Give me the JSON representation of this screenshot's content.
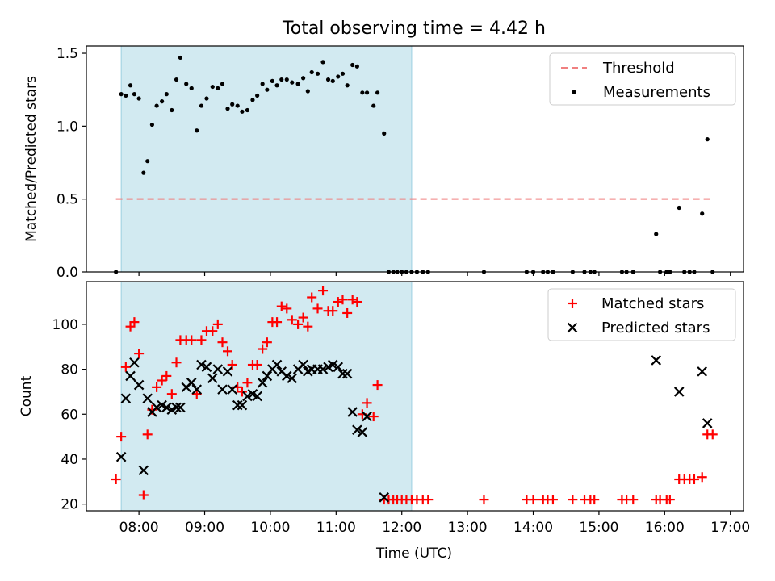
{
  "chart_data": {
    "title": "Total observing time = 4.42 h",
    "xlabel": "Time (UTC)",
    "x_unit": "hours UTC",
    "xlim": [
      7.2,
      17.2
    ],
    "xticks": [
      8,
      9,
      10,
      11,
      12,
      13,
      14,
      15,
      16,
      17
    ],
    "xtick_labels": [
      "08:00",
      "09:00",
      "10:00",
      "11:00",
      "12:00",
      "13:00",
      "14:00",
      "15:00",
      "16:00",
      "17:00"
    ],
    "shaded_span": {
      "x0": 7.73,
      "x1": 12.15,
      "color": "#add8e6"
    },
    "panels": [
      {
        "type": "scatter",
        "ylabel": "Matched/Predicted stars",
        "ylim": [
          0,
          1.55
        ],
        "yticks": [
          0.0,
          0.5,
          1.0,
          1.5
        ],
        "ytick_labels": [
          "0.0",
          "0.5",
          "1.0",
          "1.5"
        ],
        "legend": {
          "position": "top-right",
          "entries": [
            "Threshold",
            "Measurements"
          ]
        },
        "threshold": {
          "name": "Threshold",
          "y": 0.5,
          "x0": 7.65,
          "x1": 16.75,
          "color": "#f08080",
          "style": "dashed"
        },
        "series": [
          {
            "name": "Measurements",
            "marker": "dot",
            "color": "#000000",
            "points": [
              [
                7.65,
                0.0
              ],
              [
                7.73,
                1.22
              ],
              [
                7.8,
                1.21
              ],
              [
                7.87,
                1.28
              ],
              [
                7.93,
                1.22
              ],
              [
                8.0,
                1.19
              ],
              [
                8.07,
                0.68
              ],
              [
                8.13,
                0.76
              ],
              [
                8.2,
                1.01
              ],
              [
                8.27,
                1.14
              ],
              [
                8.35,
                1.17
              ],
              [
                8.42,
                1.22
              ],
              [
                8.5,
                1.11
              ],
              [
                8.57,
                1.32
              ],
              [
                8.63,
                1.47
              ],
              [
                8.72,
                1.29
              ],
              [
                8.8,
                1.26
              ],
              [
                8.88,
                0.97
              ],
              [
                8.95,
                1.14
              ],
              [
                9.03,
                1.19
              ],
              [
                9.12,
                1.27
              ],
              [
                9.2,
                1.26
              ],
              [
                9.27,
                1.29
              ],
              [
                9.35,
                1.12
              ],
              [
                9.42,
                1.15
              ],
              [
                9.5,
                1.14
              ],
              [
                9.57,
                1.1
              ],
              [
                9.65,
                1.11
              ],
              [
                9.73,
                1.18
              ],
              [
                9.8,
                1.21
              ],
              [
                9.88,
                1.29
              ],
              [
                9.95,
                1.25
              ],
              [
                10.03,
                1.31
              ],
              [
                10.1,
                1.28
              ],
              [
                10.17,
                1.32
              ],
              [
                10.25,
                1.32
              ],
              [
                10.33,
                1.3
              ],
              [
                10.42,
                1.29
              ],
              [
                10.5,
                1.33
              ],
              [
                10.57,
                1.24
              ],
              [
                10.63,
                1.37
              ],
              [
                10.72,
                1.36
              ],
              [
                10.8,
                1.44
              ],
              [
                10.88,
                1.32
              ],
              [
                10.95,
                1.31
              ],
              [
                11.03,
                1.34
              ],
              [
                11.1,
                1.36
              ],
              [
                11.17,
                1.28
              ],
              [
                11.25,
                1.42
              ],
              [
                11.32,
                1.41
              ],
              [
                11.4,
                1.23
              ],
              [
                11.47,
                1.23
              ],
              [
                11.57,
                1.14
              ],
              [
                11.63,
                1.23
              ],
              [
                11.73,
                0.95
              ],
              [
                11.8,
                0.0
              ],
              [
                11.87,
                0.0
              ],
              [
                11.93,
                0.0
              ],
              [
                12.0,
                0.0
              ],
              [
                12.07,
                0.0
              ],
              [
                12.15,
                0.0
              ],
              [
                12.23,
                0.0
              ],
              [
                12.32,
                0.0
              ],
              [
                12.4,
                0.0
              ],
              [
                13.25,
                0.0
              ],
              [
                13.9,
                0.0
              ],
              [
                14.0,
                0.0
              ],
              [
                14.15,
                0.0
              ],
              [
                14.22,
                0.0
              ],
              [
                14.3,
                0.0
              ],
              [
                14.6,
                0.0
              ],
              [
                14.78,
                0.0
              ],
              [
                14.87,
                0.0
              ],
              [
                14.93,
                0.0
              ],
              [
                15.35,
                0.0
              ],
              [
                15.42,
                0.0
              ],
              [
                15.52,
                0.0
              ],
              [
                15.87,
                0.26
              ],
              [
                15.93,
                0.0
              ],
              [
                16.03,
                0.0
              ],
              [
                16.08,
                0.0
              ],
              [
                16.22,
                0.44
              ],
              [
                16.3,
                0.0
              ],
              [
                16.38,
                0.0
              ],
              [
                16.45,
                0.0
              ],
              [
                16.57,
                0.4
              ],
              [
                16.65,
                0.91
              ],
              [
                16.73,
                0.0
              ]
            ]
          }
        ]
      },
      {
        "type": "scatter",
        "ylabel": "Count",
        "ylim": [
          17,
          119
        ],
        "yticks": [
          20,
          40,
          60,
          80,
          100
        ],
        "ytick_labels": [
          "20",
          "40",
          "60",
          "80",
          "100"
        ],
        "legend": {
          "position": "top-right",
          "entries": [
            "Matched stars",
            "Predicted stars"
          ]
        },
        "series": [
          {
            "name": "Matched stars",
            "marker": "plus",
            "color": "#ff0000",
            "points": [
              [
                7.65,
                31
              ],
              [
                7.73,
                50
              ],
              [
                7.8,
                81
              ],
              [
                7.87,
                99
              ],
              [
                7.93,
                101
              ],
              [
                8.0,
                87
              ],
              [
                8.07,
                24
              ],
              [
                8.13,
                51
              ],
              [
                8.2,
                62
              ],
              [
                8.27,
                72
              ],
              [
                8.35,
                75
              ],
              [
                8.42,
                77
              ],
              [
                8.5,
                69
              ],
              [
                8.57,
                83
              ],
              [
                8.63,
                93
              ],
              [
                8.72,
                93
              ],
              [
                8.8,
                93
              ],
              [
                8.88,
                69
              ],
              [
                8.95,
                93
              ],
              [
                9.03,
                97
              ],
              [
                9.12,
                97
              ],
              [
                9.2,
                100
              ],
              [
                9.27,
                92
              ],
              [
                9.35,
                88
              ],
              [
                9.42,
                82
              ],
              [
                9.5,
                72
              ],
              [
                9.57,
                70
              ],
              [
                9.65,
                74
              ],
              [
                9.73,
                82
              ],
              [
                9.8,
                82
              ],
              [
                9.88,
                89
              ],
              [
                9.95,
                92
              ],
              [
                10.03,
                101
              ],
              [
                10.1,
                101
              ],
              [
                10.17,
                108
              ],
              [
                10.25,
                107
              ],
              [
                10.33,
                102
              ],
              [
                10.42,
                100
              ],
              [
                10.5,
                103
              ],
              [
                10.57,
                99
              ],
              [
                10.63,
                112
              ],
              [
                10.72,
                107
              ],
              [
                10.8,
                115
              ],
              [
                10.88,
                106
              ],
              [
                10.95,
                106
              ],
              [
                11.03,
                110
              ],
              [
                11.1,
                111
              ],
              [
                11.17,
                105
              ],
              [
                11.25,
                111
              ],
              [
                11.32,
                110
              ],
              [
                11.4,
                60
              ],
              [
                11.47,
                65
              ],
              [
                11.57,
                59
              ],
              [
                11.63,
                73
              ],
              [
                11.73,
                22
              ],
              [
                11.8,
                22
              ],
              [
                11.87,
                22
              ],
              [
                11.93,
                22
              ],
              [
                12.0,
                22
              ],
              [
                12.07,
                22
              ],
              [
                12.15,
                22
              ],
              [
                12.23,
                22
              ],
              [
                12.32,
                22
              ],
              [
                12.4,
                22
              ],
              [
                13.25,
                22
              ],
              [
                13.9,
                22
              ],
              [
                14.0,
                22
              ],
              [
                14.15,
                22
              ],
              [
                14.22,
                22
              ],
              [
                14.3,
                22
              ],
              [
                14.6,
                22
              ],
              [
                14.78,
                22
              ],
              [
                14.87,
                22
              ],
              [
                14.93,
                22
              ],
              [
                15.35,
                22
              ],
              [
                15.42,
                22
              ],
              [
                15.52,
                22
              ],
              [
                15.87,
                22
              ],
              [
                15.93,
                22
              ],
              [
                16.03,
                22
              ],
              [
                16.08,
                22
              ],
              [
                16.22,
                31
              ],
              [
                16.3,
                31
              ],
              [
                16.38,
                31
              ],
              [
                16.45,
                31
              ],
              [
                16.57,
                32
              ],
              [
                16.65,
                51
              ],
              [
                16.73,
                51
              ]
            ]
          },
          {
            "name": "Predicted stars",
            "marker": "x",
            "color": "#000000",
            "points": [
              [
                7.73,
                41
              ],
              [
                7.8,
                67
              ],
              [
                7.87,
                77
              ],
              [
                7.93,
                83
              ],
              [
                8.0,
                73
              ],
              [
                8.07,
                35
              ],
              [
                8.13,
                67
              ],
              [
                8.2,
                61
              ],
              [
                8.27,
                63
              ],
              [
                8.35,
                64
              ],
              [
                8.42,
                63
              ],
              [
                8.5,
                62
              ],
              [
                8.57,
                63
              ],
              [
                8.63,
                63
              ],
              [
                8.72,
                72
              ],
              [
                8.8,
                74
              ],
              [
                8.88,
                71
              ],
              [
                8.95,
                82
              ],
              [
                9.03,
                81
              ],
              [
                9.12,
                76
              ],
              [
                9.2,
                80
              ],
              [
                9.27,
                71
              ],
              [
                9.35,
                79
              ],
              [
                9.42,
                71
              ],
              [
                9.5,
                64
              ],
              [
                9.57,
                64
              ],
              [
                9.65,
                68
              ],
              [
                9.73,
                69
              ],
              [
                9.8,
                68
              ],
              [
                9.88,
                74
              ],
              [
                9.95,
                77
              ],
              [
                10.03,
                80
              ],
              [
                10.1,
                82
              ],
              [
                10.17,
                79
              ],
              [
                10.25,
                77
              ],
              [
                10.33,
                76
              ],
              [
                10.42,
                80
              ],
              [
                10.5,
                82
              ],
              [
                10.57,
                79
              ],
              [
                10.63,
                80
              ],
              [
                10.72,
                80
              ],
              [
                10.8,
                80
              ],
              [
                10.88,
                81
              ],
              [
                10.95,
                82
              ],
              [
                11.03,
                81
              ],
              [
                11.1,
                78
              ],
              [
                11.17,
                78
              ],
              [
                11.25,
                61
              ],
              [
                11.32,
                53
              ],
              [
                11.4,
                52
              ],
              [
                11.47,
                59
              ],
              [
                11.73,
                23
              ],
              [
                15.87,
                84
              ],
              [
                16.22,
                70
              ],
              [
                16.57,
                79
              ],
              [
                16.65,
                56
              ]
            ]
          }
        ]
      }
    ]
  }
}
